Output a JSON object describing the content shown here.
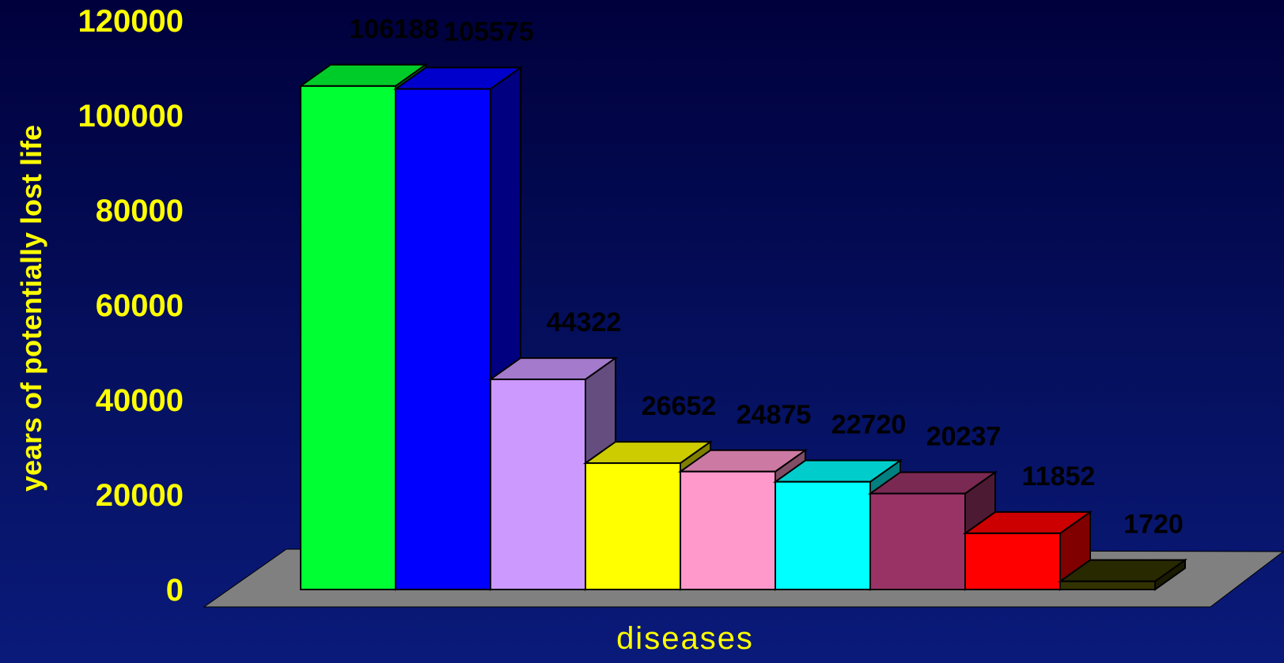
{
  "chart_data": {
    "type": "bar",
    "three_d": true,
    "values": [
      106188,
      105575,
      44322,
      26652,
      24875,
      22720,
      20237,
      11852,
      1720
    ],
    "data_labels": [
      "106188",
      "105575",
      "44322",
      "26652",
      "24875",
      "22720",
      "20237",
      "11852",
      "1720"
    ],
    "colors": [
      "#00ff33",
      "#0000ff",
      "#cc99ff",
      "#ffff00",
      "#ff99cc",
      "#00ffff",
      "#993366",
      "#ff0000",
      "#333300"
    ],
    "ylabel": "years of potentially lost life",
    "xlabel": "diseases",
    "ylim": [
      0,
      120000
    ],
    "yticks": [
      "0",
      "20000",
      "40000",
      "60000",
      "80000",
      "100000",
      "120000"
    ],
    "grid": false,
    "floor_color": "#808080",
    "background": "#000050"
  }
}
